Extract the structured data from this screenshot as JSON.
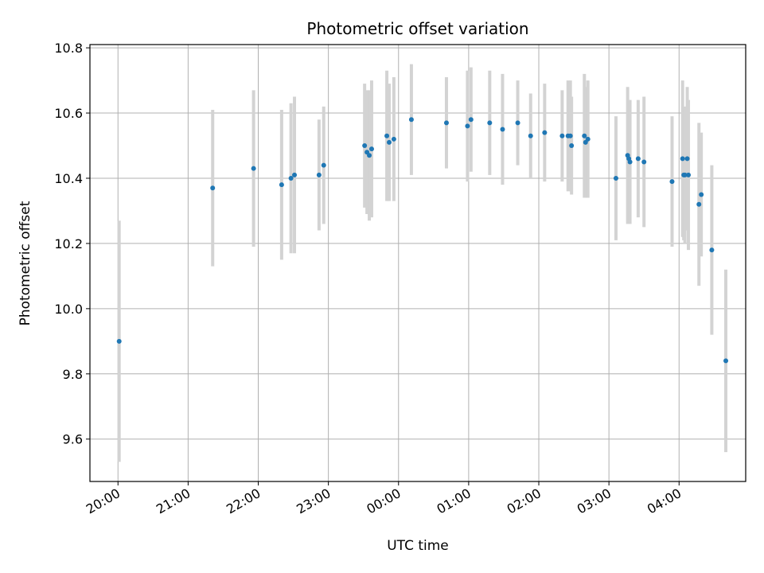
{
  "chart_data": {
    "type": "scatter",
    "title": "Photometric offset variation",
    "xlabel": "UTC time",
    "ylabel": "Photometric offset",
    "x_tick_labels": [
      "20:00",
      "21:00",
      "22:00",
      "23:00",
      "00:00",
      "01:00",
      "02:00",
      "03:00",
      "04:00"
    ],
    "y_tick_labels": [
      "9.6",
      "9.8",
      "10.0",
      "10.2",
      "10.4",
      "10.6",
      "10.8"
    ],
    "y_ticks": [
      9.6,
      9.8,
      10.0,
      10.2,
      10.4,
      10.6,
      10.8
    ],
    "xlim": [
      "19:36",
      "04:57"
    ],
    "ylim": [
      9.47,
      10.81
    ],
    "grid": true,
    "colors": {
      "point": "#1f77b4",
      "errorbar": "#d3d3d3",
      "grid": "#b0b0b0"
    },
    "series": [
      {
        "x": [
          "20:01",
          "21:21",
          "21:56",
          "22:20",
          "22:28",
          "22:31",
          "22:52",
          "22:56",
          "23:31",
          "23:33",
          "23:35",
          "23:37",
          "23:50",
          "23:52",
          "23:56",
          "00:11",
          "00:41",
          "00:59",
          "01:02",
          "01:18",
          "01:29",
          "01:42",
          "01:53",
          "02:05",
          "02:20",
          "02:25",
          "02:27",
          "02:28",
          "02:39",
          "02:40",
          "02:42",
          "03:06",
          "03:16",
          "03:17",
          "03:18",
          "03:25",
          "03:30",
          "03:54",
          "04:03",
          "04:04",
          "04:05",
          "04:07",
          "04:08",
          "04:17",
          "04:19",
          "04:28",
          "04:40"
        ],
        "y": [
          9.9,
          10.37,
          10.43,
          10.38,
          10.4,
          10.41,
          10.41,
          10.44,
          10.5,
          10.48,
          10.47,
          10.49,
          10.53,
          10.51,
          10.52,
          10.58,
          10.57,
          10.56,
          10.58,
          10.57,
          10.55,
          10.57,
          10.53,
          10.54,
          10.53,
          10.53,
          10.53,
          10.5,
          10.53,
          10.51,
          10.52,
          10.4,
          10.47,
          10.46,
          10.45,
          10.46,
          10.45,
          10.39,
          10.46,
          10.41,
          10.41,
          10.46,
          10.41,
          10.32,
          10.35,
          10.18,
          9.84
        ],
        "yerr": [
          0.37,
          0.24,
          0.24,
          0.23,
          0.23,
          0.24,
          0.17,
          0.18,
          0.19,
          0.19,
          0.2,
          0.21,
          0.2,
          0.18,
          0.19,
          0.17,
          0.14,
          0.17,
          0.16,
          0.16,
          0.17,
          0.13,
          0.13,
          0.15,
          0.14,
          0.17,
          0.17,
          0.15,
          0.19,
          0.17,
          0.18,
          0.19,
          0.21,
          0.18,
          0.19,
          0.18,
          0.2,
          0.2,
          0.24,
          0.2,
          0.21,
          0.22,
          0.23,
          0.25,
          0.19,
          0.26,
          0.28
        ]
      }
    ]
  }
}
